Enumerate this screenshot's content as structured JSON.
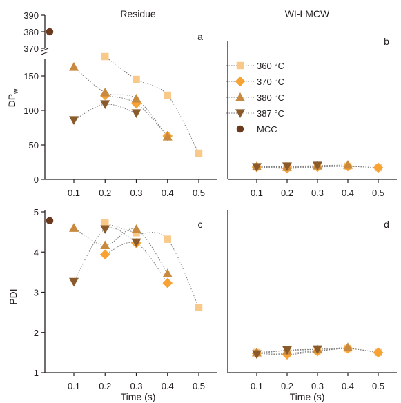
{
  "figure": {
    "colors": {
      "t360": "#f9c98a",
      "t370": "#f7a233",
      "t380": "#c98a3f",
      "t387": "#8b5a2b",
      "mcc": "#6b3a1e",
      "axis": "#231f20",
      "fit": "#7a7a7a"
    },
    "legend": [
      {
        "label": "360 °C",
        "marker": "square",
        "color_key": "t360"
      },
      {
        "label": "370 °C",
        "marker": "diamond",
        "color_key": "t370"
      },
      {
        "label": "380 °C",
        "marker": "triangle-up",
        "color_key": "t380"
      },
      {
        "label": "387 °C",
        "marker": "triangle-down",
        "color_key": "t387"
      },
      {
        "label": "MCC",
        "marker": "circle",
        "color_key": "mcc"
      }
    ]
  },
  "chart_data": [
    {
      "panel": "a",
      "type": "scatter",
      "title": "Residue",
      "ylabel": "DPw",
      "xlabel": "",
      "x_ticks": [
        "0.1",
        "0.2",
        "0.3",
        "0.4",
        "0.5"
      ],
      "y_ticks": [
        "0",
        "50",
        "100",
        "150"
      ],
      "y_ticks_upper": [
        "370",
        "380",
        "390"
      ],
      "y_axis_break": [
        175,
        370
      ],
      "ylim_lower": [
        0,
        175
      ],
      "ylim_upper": [
        370,
        390
      ],
      "series": [
        {
          "name": "360 °C",
          "color_key": "t360",
          "marker": "square",
          "x": [
            0.2,
            0.3,
            0.4,
            0.5
          ],
          "y": [
            178,
            145,
            122,
            38
          ],
          "fit": true
        },
        {
          "name": "370 °C",
          "color_key": "t370",
          "marker": "diamond",
          "x": [
            0.2,
            0.3,
            0.4
          ],
          "y": [
            122,
            110,
            63
          ],
          "fit": true
        },
        {
          "name": "380 °C",
          "color_key": "t380",
          "marker": "triangle-up",
          "x": [
            0.1,
            0.2,
            0.3,
            0.4
          ],
          "y": [
            163,
            126,
            117,
            62
          ],
          "fit": true
        },
        {
          "name": "387 °C",
          "color_key": "t387",
          "marker": "triangle-down",
          "x": [
            0.1,
            0.2,
            0.3
          ],
          "y": [
            86,
            109,
            96
          ],
          "fit": true
        },
        {
          "name": "MCC",
          "color_key": "mcc",
          "marker": "circle",
          "x": [
            0.0
          ],
          "y": [
            380
          ],
          "fit": false
        }
      ]
    },
    {
      "panel": "b",
      "type": "scatter",
      "title": "WI-LMCW",
      "ylabel": "",
      "xlabel": "",
      "x_ticks": [
        "0.1",
        "0.2",
        "0.3",
        "0.4",
        "0.5"
      ],
      "ylim": [
        0,
        175
      ],
      "series": [
        {
          "name": "360 °C",
          "color_key": "t360",
          "marker": "square",
          "x": [
            0.1,
            0.2,
            0.3,
            0.4,
            0.5
          ],
          "y": [
            18,
            17,
            19,
            19,
            17
          ],
          "fit": true
        },
        {
          "name": "370 °C",
          "color_key": "t370",
          "marker": "diamond",
          "x": [
            0.1,
            0.2,
            0.3,
            0.4,
            0.5
          ],
          "y": [
            18,
            16,
            18,
            19,
            17
          ],
          "fit": true
        },
        {
          "name": "380 °C",
          "color_key": "t380",
          "marker": "triangle-up",
          "x": [
            0.1,
            0.2,
            0.3,
            0.4
          ],
          "y": [
            19,
            18,
            20,
            21
          ],
          "fit": true
        },
        {
          "name": "387 °C",
          "color_key": "t387",
          "marker": "triangle-down",
          "x": [
            0.1,
            0.2,
            0.3
          ],
          "y": [
            18,
            19,
            20
          ],
          "fit": true
        }
      ]
    },
    {
      "panel": "c",
      "type": "scatter",
      "title": "",
      "ylabel": "PDI",
      "xlabel": "Time (s)",
      "x_ticks": [
        "0.1",
        "0.2",
        "0.3",
        "0.4",
        "0.5"
      ],
      "y_ticks": [
        "1",
        "2",
        "3",
        "4",
        "5"
      ],
      "ylim": [
        1,
        5
      ],
      "series": [
        {
          "name": "360 °C",
          "color_key": "t360",
          "marker": "square",
          "x": [
            0.2,
            0.3,
            0.4,
            0.5
          ],
          "y": [
            4.72,
            4.48,
            4.32,
            2.62
          ],
          "fit": true
        },
        {
          "name": "370 °C",
          "color_key": "t370",
          "marker": "diamond",
          "x": [
            0.2,
            0.3,
            0.4
          ],
          "y": [
            3.94,
            4.22,
            3.23
          ],
          "fit": true
        },
        {
          "name": "380 °C",
          "color_key": "t380",
          "marker": "triangle-up",
          "x": [
            0.1,
            0.2,
            0.3,
            0.4
          ],
          "y": [
            4.6,
            4.17,
            4.57,
            3.47
          ],
          "fit": true
        },
        {
          "name": "387 °C",
          "color_key": "t387",
          "marker": "triangle-down",
          "x": [
            0.1,
            0.2,
            0.3
          ],
          "y": [
            3.26,
            4.57,
            4.24
          ],
          "fit": true
        },
        {
          "name": "MCC",
          "color_key": "mcc",
          "marker": "circle",
          "x": [
            0.0
          ],
          "y": [
            4.78
          ],
          "fit": false
        }
      ]
    },
    {
      "panel": "d",
      "type": "scatter",
      "title": "",
      "ylabel": "",
      "xlabel": "Time (s)",
      "x_ticks": [
        "0.1",
        "0.2",
        "0.3",
        "0.4",
        "0.5"
      ],
      "ylim": [
        1,
        5
      ],
      "series": [
        {
          "name": "360 °C",
          "color_key": "t360",
          "marker": "square",
          "x": [
            0.1,
            0.2,
            0.3,
            0.4,
            0.5
          ],
          "y": [
            1.5,
            1.48,
            1.55,
            1.6,
            1.5
          ],
          "fit": true
        },
        {
          "name": "370 °C",
          "color_key": "t370",
          "marker": "diamond",
          "x": [
            0.1,
            0.2,
            0.3,
            0.4,
            0.5
          ],
          "y": [
            1.48,
            1.45,
            1.53,
            1.6,
            1.5
          ],
          "fit": true
        },
        {
          "name": "380 °C",
          "color_key": "t380",
          "marker": "triangle-up",
          "x": [
            0.1,
            0.2,
            0.3,
            0.4
          ],
          "y": [
            1.5,
            1.55,
            1.58,
            1.63
          ],
          "fit": true
        },
        {
          "name": "387 °C",
          "color_key": "t387",
          "marker": "triangle-down",
          "x": [
            0.1,
            0.2,
            0.3
          ],
          "y": [
            1.46,
            1.56,
            1.58
          ],
          "fit": true
        }
      ]
    }
  ]
}
